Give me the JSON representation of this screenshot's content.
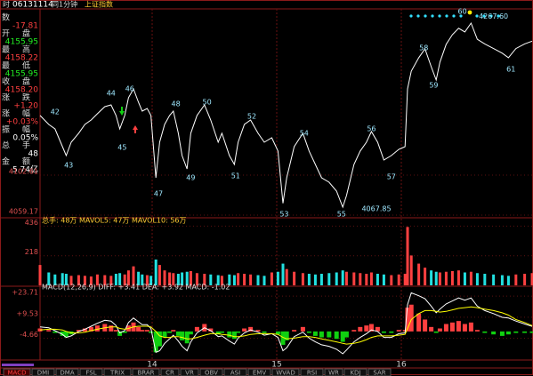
{
  "header": {
    "code": "06131114",
    "period": "同1分钟",
    "name": "上证指数"
  },
  "info_panel": [
    {
      "label": "数",
      "value": "-17.81"
    },
    {
      "label": "开盘",
      "value": "4155.95"
    },
    {
      "label": "最高",
      "value": "4158.22"
    },
    {
      "label": "最低",
      "value": "4155.95"
    },
    {
      "label": "收盘",
      "value": "4158.20"
    },
    {
      "label": "涨跌",
      "value": "+1.20"
    },
    {
      "label": "涨幅",
      "value": "+0.03%"
    },
    {
      "label": "振幅",
      "value": "0.05%"
    },
    {
      "label": "总手",
      "value": "48"
    },
    {
      "label": "金额",
      "value": "5.74亿"
    }
  ],
  "tabs": [
    "MACD",
    "DMI",
    "DMA",
    "FSL",
    "TRIX",
    "BRAR",
    "CR",
    "VR",
    "OBV",
    "ASI",
    "EMV",
    "WVAD",
    "RSI",
    "WR",
    "KDJ",
    "SAR"
  ],
  "chart_data": [
    {
      "type": "line",
      "x": [
        13.1,
        13.17,
        13.22,
        13.28,
        13.31,
        13.35,
        13.41,
        13.46,
        13.51,
        13.56,
        13.62,
        13.67,
        13.71,
        13.74,
        13.78,
        13.81,
        13.85,
        13.89,
        13.92,
        13.96,
        13.99,
        14.03,
        14.06,
        14.1,
        14.14,
        14.17,
        14.21,
        14.24,
        14.28,
        14.31,
        14.36,
        14.42,
        14.47,
        14.53,
        14.56,
        14.62,
        14.66,
        14.69,
        14.74,
        14.79,
        14.85,
        14.9,
        14.96,
        15.01,
        15.05,
        15.08,
        15.14,
        15.21,
        15.26,
        15.31,
        15.36,
        15.42,
        15.48,
        15.53,
        15.56,
        15.62,
        15.67,
        15.72,
        15.76,
        15.81,
        15.86,
        15.92,
        15.98,
        16.03,
        16.05,
        16.08,
        16.14,
        16.19,
        16.24,
        16.28,
        16.31,
        16.36,
        16.41,
        16.46,
        16.51,
        16.56,
        16.61,
        16.67,
        16.74,
        16.81,
        16.86,
        16.92,
        16.99,
        17.05
      ],
      "series": [
        {
          "color": "#ffffff",
          "values": [
            4167.3,
            4157.6,
            4152.8,
            4133.5,
            4123.8,
            4138.3,
            4148.0,
            4157.6,
            4162.4,
            4169.2,
            4176.9,
            4178.8,
            4167.3,
            4152.8,
            4167.3,
            4186.6,
            4196.2,
            4181.7,
            4172.1,
            4175.0,
            4167.3,
            4099.7,
            4138.3,
            4157.6,
            4167.3,
            4172.1,
            4148.0,
            4123.8,
            4109.3,
            4148.0,
            4167.3,
            4178.8,
            4162.4,
            4138.3,
            4148.0,
            4123.8,
            4114.2,
            4138.3,
            4157.6,
            4162.4,
            4148.0,
            4138.3,
            4143.1,
            4128.7,
            4072.0,
            4099.7,
            4133.5,
            4148.0,
            4128.7,
            4114.2,
            4099.7,
            4094.9,
            4085.2,
            4067.85,
            4080.4,
            4114.2,
            4128.7,
            4138.3,
            4149.9,
            4138.3,
            4119.0,
            4123.8,
            4130.6,
            4133.5,
            4196.2,
            4215.5,
            4230.0,
            4239.6,
            4220.3,
            4205.8,
            4225.2,
            4244.5,
            4255,
            4262,
            4258,
            4267.6,
            4250,
            4245,
            4240,
            4235,
            4230,
            4240,
            4245,
            4248
          ]
        }
      ],
      "xlim": [
        13.1,
        17.057
      ],
      "xticks": [
        14,
        15,
        16
      ],
      "ylim": [
        4056.3,
        4283.0
      ],
      "yticks": [
        4059.17,
        4102.61
      ],
      "annotations": [
        {
          "text": "42",
          "x": 13.22,
          "y": 4171.1
        },
        {
          "text": "43",
          "x": 13.33,
          "y": 4113.2
        },
        {
          "text": "44",
          "x": 13.67,
          "y": 4191.4
        },
        {
          "text": "45",
          "x": 13.76,
          "y": 4132.5
        },
        {
          "text": "46",
          "x": 13.82,
          "y": 4196.2
        },
        {
          "text": "47",
          "x": 14.05,
          "y": 4082.3
        },
        {
          "text": "48",
          "x": 14.19,
          "y": 4179.8
        },
        {
          "text": "49",
          "x": 14.31,
          "y": 4099.7
        },
        {
          "text": "50",
          "x": 14.44,
          "y": 4181.7
        },
        {
          "text": "51",
          "x": 14.67,
          "y": 4101.6
        },
        {
          "text": "52",
          "x": 14.8,
          "y": 4166.3
        },
        {
          "text": "53",
          "x": 15.06,
          "y": 4060.1
        },
        {
          "text": "54",
          "x": 15.22,
          "y": 4148.0
        },
        {
          "text": "55",
          "x": 15.52,
          "y": 4060.1
        },
        {
          "text": "56",
          "x": 15.76,
          "y": 4152.8
        },
        {
          "text": "57",
          "x": 15.92,
          "y": 4100.6
        },
        {
          "text": "58",
          "x": 16.18,
          "y": 4240.6
        },
        {
          "text": "59",
          "x": 16.26,
          "y": 4200.1
        },
        {
          "text": "60",
          "x": 16.49,
          "y": 4280.2
        },
        {
          "text": "61",
          "x": 16.88,
          "y": 4217.4
        },
        {
          "text": "4267.60",
          "x": 16.74,
          "y": 4275.0
        },
        {
          "text": "4067.85",
          "x": 15.8,
          "y": 4066.0
        }
      ]
    },
    {
      "type": "bar",
      "title": "总手: 48万  MAVOL5: 47万  MAVOL10: 56万",
      "up_color": "#ff4040",
      "down_color": "#22e0e0",
      "values": [
        150,
        95,
        80,
        90,
        85,
        70,
        75,
        70,
        65,
        80,
        75,
        70,
        85,
        90,
        80,
        110,
        140,
        100,
        80,
        75,
        70,
        190,
        150,
        110,
        95,
        90,
        85,
        95,
        100,
        105,
        90,
        85,
        80,
        75,
        70,
        80,
        75,
        90,
        85,
        80,
        75,
        70,
        95,
        100,
        160,
        120,
        100,
        90,
        85,
        80,
        85,
        90,
        95,
        110,
        100,
        95,
        90,
        85,
        95,
        85,
        80,
        75,
        80,
        85,
        430,
        220,
        160,
        130,
        110,
        100,
        95,
        100,
        105,
        110,
        95,
        100,
        90,
        85,
        80,
        75,
        70,
        80,
        85,
        90
      ],
      "ylim": [
        0,
        465
      ],
      "yticks": [
        218,
        436
      ]
    },
    {
      "type": "macd",
      "title": "MACD(12,26,9)  DIFF: +3.41  DEA: +3.92  MACD: -1.02",
      "pos_color": "#ff4040",
      "neg_color": "#10d010",
      "values": [
        2,
        1,
        -1,
        -3,
        -4,
        -2,
        1,
        2,
        3,
        4,
        5,
        4,
        1,
        -3,
        -1,
        4,
        6,
        3,
        1,
        1,
        -1,
        -14,
        -10,
        -4,
        -1,
        1,
        -3,
        -6,
        -8,
        -2,
        3,
        5,
        2,
        -2,
        -1,
        -4,
        -5,
        -1,
        2,
        3,
        1,
        -1,
        0,
        -2,
        -9,
        -6,
        1,
        3,
        -1,
        -3,
        -4,
        -4,
        -5,
        -7,
        -4,
        1,
        3,
        4,
        5,
        3,
        -1,
        -1,
        1,
        1,
        16,
        18,
        12,
        8,
        3,
        -1,
        2,
        5,
        6,
        7,
        5,
        6,
        1,
        -1,
        -2,
        -3,
        -2,
        -1,
        -1,
        -1.02
      ],
      "series": [
        {
          "color": "#ffffff",
          "values": [
            3,
            2.5,
            0.5,
            -2,
            -4,
            -3,
            0,
            1.5,
            3.5,
            5.5,
            7.5,
            7,
            4,
            -1,
            0.5,
            6,
            9,
            6.5,
            4.5,
            4.5,
            2,
            -14,
            -13,
            -8,
            -5,
            -2.5,
            -6.5,
            -10,
            -13,
            -7,
            -1,
            2.5,
            0.5,
            -3.5,
            -3,
            -6.5,
            -8.5,
            -4.5,
            -1,
            1,
            -0.5,
            -2.5,
            -1.5,
            -4,
            -13,
            -11,
            -3.5,
            -0.5,
            -4.5,
            -7,
            -9,
            -10,
            -12,
            -15,
            -12.5,
            -7,
            -4,
            -1.5,
            1,
            0,
            -4,
            -4,
            -1.5,
            -1,
            18,
            26,
            24,
            22,
            17,
            12.5,
            15,
            18.5,
            20.5,
            22.5,
            21,
            22.5,
            17,
            14,
            12,
            9.5,
            9,
            7,
            5,
            3.41
          ]
        },
        {
          "color": "#ffff00",
          "values": [
            1,
            1.5,
            1.5,
            1,
            0,
            -1,
            -1,
            -0.5,
            0.5,
            1.5,
            2.5,
            3,
            3,
            2,
            1.5,
            2,
            3,
            3.5,
            3.5,
            3.5,
            3,
            0,
            -3,
            -4,
            -4,
            -3.5,
            -3.5,
            -4,
            -5,
            -5,
            -4,
            -2.5,
            -1.5,
            -1.5,
            -2,
            -2.5,
            -3.5,
            -3.5,
            -3,
            -2,
            -1.5,
            -1.5,
            -1.5,
            -2,
            -4,
            -5,
            -4.5,
            -3.5,
            -3.5,
            -4,
            -5,
            -6,
            -7,
            -8,
            -8.5,
            -8,
            -7,
            -5.5,
            -4,
            -3,
            -3,
            -3,
            -2.5,
            -2,
            2,
            8,
            12,
            14,
            14,
            13.5,
            13,
            13.5,
            14.5,
            15.5,
            16,
            16.5,
            16,
            15,
            14,
            12.5,
            11,
            8,
            6,
            3.92
          ]
        }
      ],
      "ylim": [
        -19.2,
        28.6
      ],
      "yticks": [
        {
          "value": -4.66,
          "label": "-4.66"
        },
        {
          "value": 9.53,
          "label": "+9.53"
        },
        {
          "value": 23.71,
          "label": "+23.71"
        }
      ]
    }
  ]
}
